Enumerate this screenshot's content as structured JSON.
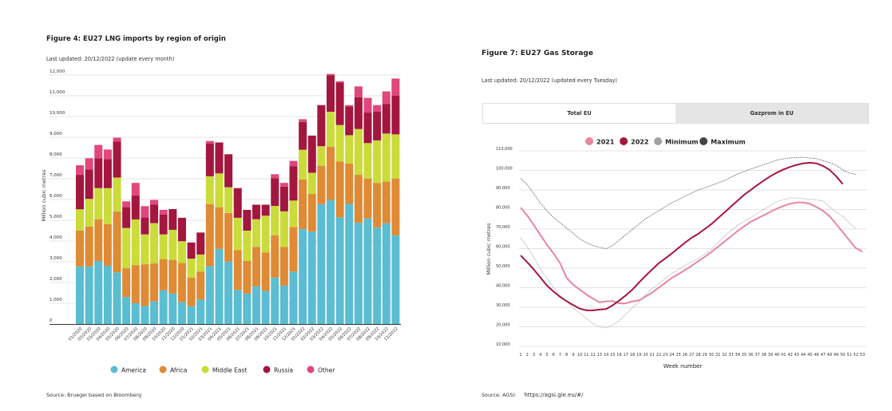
{
  "left": {
    "title": "Figure 4: EU27 LNG imports by region of origin",
    "subtitle": "Last updated: 20/12/2022 (update every month)",
    "source": "Source: Bruegel based on Bloomberg"
  },
  "right": {
    "title": "Figure 7: EU27 Gas Storage",
    "subtitle": "Last updated: 20/12/2022 (updated every Tuesday)",
    "tabs": [
      {
        "label": "Total EU",
        "active": true
      },
      {
        "label": "Gazprom in EU",
        "active": false
      }
    ],
    "source_label": "Source: AGSI:",
    "source_url": "https://agsi.gie.eu/#/"
  },
  "chart_data": [
    {
      "type": "bar",
      "stacked": true,
      "title": "Figure 4: EU27 LNG imports by region of origin",
      "ylabel": "Million cubic metres",
      "xlabel": "",
      "ylim": [
        0,
        12000
      ],
      "yticks": [
        0,
        1000,
        2000,
        3000,
        4000,
        5000,
        6000,
        7000,
        8000,
        9000,
        10000,
        11000,
        12000
      ],
      "ytick_labels": [
        "0",
        "1,000",
        "2,000",
        "3,000",
        "4,000",
        "5,000",
        "6,000",
        "7,000",
        "8,000",
        "9,000",
        "10,000",
        "11,000",
        "12,000"
      ],
      "grid": true,
      "legend_position": "bottom",
      "categories": [
        "01/2020",
        "02/2020",
        "03/2020",
        "04/2020",
        "05/2020",
        "06/2020",
        "07/2020",
        "08/2020",
        "09/2020",
        "10/2020",
        "11/2020",
        "12/2020",
        "01/2021",
        "02/2021",
        "03/2021",
        "04/2021",
        "05/2021",
        "06/2021",
        "07/2021",
        "08/2021",
        "09/2021",
        "10/2021",
        "11/2021",
        "12/2021",
        "01/2022",
        "02/2022",
        "03/2022",
        "04/2022",
        "05/2022",
        "06/2022",
        "07/2022",
        "08/2022",
        "09/2022",
        "10/2022",
        "11/2022"
      ],
      "series": [
        {
          "name": "America",
          "color": "#5bbdd1",
          "values": [
            2780,
            2780,
            3040,
            2810,
            2490,
            1300,
            1000,
            870,
            1090,
            1620,
            1470,
            1050,
            860,
            1180,
            2790,
            3620,
            3010,
            1640,
            1470,
            1820,
            1600,
            2240,
            1850,
            2530,
            4580,
            4450,
            5780,
            5980,
            5140,
            5790,
            4880,
            5090,
            4650,
            4860,
            4280
          ]
        },
        {
          "name": "Africa",
          "color": "#df8a34",
          "values": [
            1730,
            1920,
            2010,
            2000,
            2930,
            1390,
            1840,
            2010,
            1830,
            1510,
            1620,
            1890,
            1370,
            1350,
            2990,
            2010,
            2340,
            1920,
            1570,
            1890,
            1850,
            2040,
            1860,
            2140,
            2390,
            1820,
            1850,
            2560,
            2690,
            1950,
            2310,
            1920,
            2150,
            2010,
            2730
          ]
        },
        {
          "name": "Middle East",
          "color": "#cbdb3a",
          "values": [
            1020,
            1330,
            1500,
            1740,
            1640,
            1940,
            2200,
            1440,
            1940,
            1190,
            1450,
            1050,
            920,
            820,
            1340,
            1630,
            1240,
            1560,
            1460,
            1340,
            1770,
            1410,
            1720,
            1280,
            1430,
            1020,
            940,
            1690,
            1760,
            1360,
            2210,
            1710,
            2050,
            2310,
            2130
          ]
        },
        {
          "name": "Russia",
          "color": "#a3163d",
          "values": [
            1660,
            1410,
            1440,
            1400,
            1730,
            1000,
            1160,
            820,
            890,
            950,
            1000,
            1130,
            780,
            1060,
            1580,
            1490,
            1590,
            1430,
            1000,
            700,
            530,
            1340,
            1190,
            1660,
            1340,
            1790,
            1980,
            1760,
            2050,
            1390,
            1530,
            1470,
            1380,
            1430,
            1860
          ]
        },
        {
          "name": "Other",
          "color": "#e0477d",
          "values": [
            460,
            550,
            640,
            460,
            190,
            280,
            600,
            540,
            230,
            230,
            0,
            0,
            0,
            0,
            120,
            0,
            0,
            0,
            0,
            0,
            0,
            190,
            180,
            250,
            130,
            0,
            0,
            60,
            60,
            60,
            520,
            710,
            320,
            600,
            830
          ]
        }
      ]
    },
    {
      "type": "line",
      "title": "Figure 7: EU27 Gas Storage",
      "xlabel": "Week number",
      "ylabel": "Million cubic metres",
      "ylim": [
        10000,
        110000
      ],
      "yticks": [
        10000,
        20000,
        30000,
        40000,
        50000,
        60000,
        70000,
        80000,
        90000,
        100000,
        110000
      ],
      "ytick_labels": [
        "10,000",
        "20,000",
        "30,000",
        "40,000",
        "50,000",
        "60,000",
        "70,000",
        "80,000",
        "90,000",
        "100,000",
        "110,000"
      ],
      "xlim": [
        1,
        53
      ],
      "grid": true,
      "legend_position": "top",
      "x": [
        1,
        2,
        3,
        4,
        5,
        6,
        7,
        8,
        9,
        10,
        11,
        12,
        13,
        14,
        15,
        16,
        17,
        18,
        19,
        20,
        21,
        22,
        23,
        24,
        25,
        26,
        27,
        28,
        29,
        30,
        31,
        32,
        33,
        34,
        35,
        36,
        37,
        38,
        39,
        40,
        41,
        42,
        43,
        44,
        45,
        46,
        47,
        48,
        49,
        50,
        51,
        52,
        53
      ],
      "series": [
        {
          "name": "2021",
          "color": "#e8869f",
          "style": "solid",
          "values": [
            81000,
            77000,
            72000,
            67000,
            62000,
            57500,
            52500,
            45000,
            41500,
            39000,
            36500,
            34500,
            32500,
            33000,
            33200,
            32000,
            32000,
            33000,
            33500,
            35500,
            37500,
            40000,
            42500,
            45000,
            47000,
            49000,
            51200,
            53500,
            55800,
            58200,
            60900,
            63600,
            66300,
            69000,
            71400,
            73700,
            75400,
            77100,
            78800,
            80500,
            81800,
            83000,
            83600,
            83600,
            82900,
            81300,
            79300,
            76600,
            72500,
            68400,
            64300,
            60200,
            58500
          ]
        },
        {
          "name": "2022",
          "color": "#a3163d",
          "style": "solid",
          "values": [
            56500,
            53000,
            49300,
            45200,
            41100,
            38000,
            35300,
            33100,
            31100,
            29300,
            28400,
            28400,
            28800,
            29100,
            31000,
            33500,
            36100,
            39000,
            42700,
            46100,
            49300,
            52500,
            55000,
            57500,
            60300,
            63000,
            65500,
            67500,
            70000,
            72500,
            75500,
            78500,
            81500,
            84500,
            87500,
            90000,
            92500,
            94800,
            97000,
            98900,
            100500,
            101800,
            102800,
            103600,
            103900,
            103600,
            102300,
            100300,
            97000,
            93000,
            null,
            null,
            null
          ]
        },
        {
          "name": "Minimum",
          "color": "#999999",
          "style": "dotted",
          "values": [
            65500,
            61000,
            55500,
            49500,
            44700,
            39900,
            35800,
            33000,
            29500,
            27000,
            24300,
            21600,
            20000,
            19500,
            20900,
            23000,
            26400,
            29800,
            32500,
            36500,
            39500,
            42000,
            44700,
            47300,
            49300,
            51400,
            53100,
            54800,
            57200,
            59600,
            63000,
            66400,
            69100,
            71900,
            73900,
            75900,
            78000,
            80000,
            82000,
            84100,
            85000,
            86000,
            85800,
            85500,
            85200,
            85000,
            84300,
            81300,
            78600,
            76600,
            73200,
            70000,
            null
          ]
        },
        {
          "name": "Maximum",
          "color": "#444444",
          "style": "dotted",
          "values": [
            95800,
            92800,
            88000,
            83400,
            79300,
            75900,
            73200,
            70500,
            67800,
            65000,
            63000,
            61600,
            60700,
            59900,
            61600,
            64400,
            67100,
            69800,
            72500,
            75200,
            77300,
            79300,
            81400,
            83400,
            85100,
            86800,
            88400,
            90000,
            91100,
            92300,
            93500,
            94800,
            96500,
            98200,
            99400,
            100700,
            101800,
            103000,
            104100,
            105300,
            105900,
            106400,
            106500,
            106700,
            106300,
            106000,
            105000,
            104000,
            102600,
            100300,
            98600,
            98000,
            null
          ]
        }
      ]
    }
  ]
}
